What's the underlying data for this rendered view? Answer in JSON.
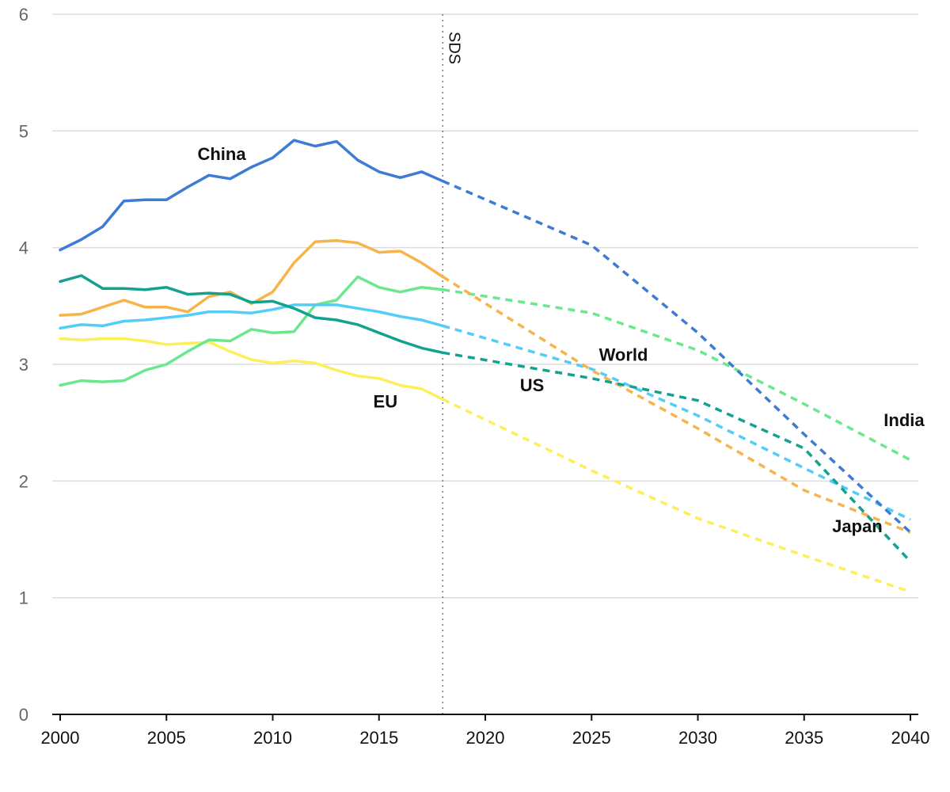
{
  "chart_data": {
    "type": "line",
    "title": "",
    "xlabel": "",
    "ylabel": "",
    "xlim": [
      2000,
      2040
    ],
    "ylim": [
      0,
      6
    ],
    "x_ticks": [
      "2000",
      "2005",
      "2010",
      "2015",
      "2020",
      "2025",
      "2030",
      "2035",
      "2040"
    ],
    "y_ticks": [
      "0",
      "1",
      "2",
      "3",
      "4",
      "5",
      "6"
    ],
    "grid": "horizontal",
    "marker": {
      "label": "SDS",
      "x": 2018
    },
    "legend": "none (direct labels)",
    "historical_style": "solid",
    "projection_style": "dashed",
    "series": [
      {
        "name": "China",
        "color": "#3d7bd4",
        "historical": {
          "x": [
            2000,
            2001,
            2002,
            2003,
            2004,
            2005,
            2006,
            2007,
            2008,
            2009,
            2010,
            2011,
            2012,
            2013,
            2014,
            2015,
            2016,
            2017,
            2018
          ],
          "y": [
            3.98,
            4.07,
            4.18,
            4.4,
            4.41,
            4.41,
            4.52,
            4.62,
            4.59,
            4.69,
            4.77,
            4.92,
            4.87,
            4.91,
            4.75,
            4.65,
            4.6,
            4.65,
            4.57
          ]
        },
        "projection": {
          "x": [
            2018,
            2025,
            2030,
            2035,
            2040
          ],
          "y": [
            4.57,
            4.02,
            3.27,
            2.4,
            1.56
          ]
        }
      },
      {
        "name": "Japan",
        "color": "#f7b44a",
        "historical": {
          "x": [
            2000,
            2001,
            2002,
            2003,
            2004,
            2005,
            2006,
            2007,
            2008,
            2009,
            2010,
            2011,
            2012,
            2013,
            2014,
            2015,
            2016,
            2017,
            2018
          ],
          "y": [
            3.42,
            3.43,
            3.49,
            3.55,
            3.49,
            3.49,
            3.45,
            3.58,
            3.62,
            3.52,
            3.62,
            3.87,
            4.05,
            4.06,
            4.04,
            3.96,
            3.97,
            3.87,
            3.75
          ]
        },
        "projection": {
          "x": [
            2018,
            2025,
            2030,
            2035,
            2040
          ],
          "y": [
            3.75,
            2.95,
            2.45,
            1.92,
            1.56
          ]
        }
      },
      {
        "name": "US",
        "color": "#13a28f",
        "historical": {
          "x": [
            2000,
            2001,
            2002,
            2003,
            2004,
            2005,
            2006,
            2007,
            2008,
            2009,
            2010,
            2011,
            2012,
            2013,
            2014,
            2015,
            2016,
            2017,
            2018
          ],
          "y": [
            3.71,
            3.76,
            3.65,
            3.65,
            3.64,
            3.66,
            3.6,
            3.61,
            3.6,
            3.53,
            3.54,
            3.48,
            3.4,
            3.38,
            3.34,
            3.27,
            3.2,
            3.14,
            3.1
          ]
        },
        "projection": {
          "x": [
            2018,
            2025,
            2030,
            2035,
            2040
          ],
          "y": [
            3.1,
            2.88,
            2.69,
            2.28,
            1.31
          ]
        }
      },
      {
        "name": "World",
        "color": "#52cdf7",
        "historical": {
          "x": [
            2000,
            2001,
            2002,
            2003,
            2004,
            2005,
            2006,
            2007,
            2008,
            2009,
            2010,
            2011,
            2012,
            2013,
            2014,
            2015,
            2016,
            2017,
            2018
          ],
          "y": [
            3.31,
            3.34,
            3.33,
            3.37,
            3.38,
            3.4,
            3.42,
            3.45,
            3.45,
            3.44,
            3.47,
            3.51,
            3.51,
            3.51,
            3.48,
            3.45,
            3.41,
            3.38,
            3.33
          ]
        },
        "projection": {
          "x": [
            2018,
            2025,
            2030,
            2035,
            2040
          ],
          "y": [
            3.33,
            2.96,
            2.56,
            2.11,
            1.67
          ]
        }
      },
      {
        "name": "India",
        "color": "#6be88d",
        "historical": {
          "x": [
            2000,
            2001,
            2002,
            2003,
            2004,
            2005,
            2006,
            2007,
            2008,
            2009,
            2010,
            2011,
            2012,
            2013,
            2014,
            2015,
            2016,
            2017,
            2018
          ],
          "y": [
            2.82,
            2.86,
            2.85,
            2.86,
            2.95,
            3.0,
            3.11,
            3.21,
            3.2,
            3.3,
            3.27,
            3.28,
            3.51,
            3.55,
            3.75,
            3.66,
            3.62,
            3.66,
            3.64
          ]
        },
        "projection": {
          "x": [
            2018,
            2025,
            2030,
            2035,
            2040
          ],
          "y": [
            3.64,
            3.44,
            3.12,
            2.66,
            2.18
          ]
        }
      },
      {
        "name": "EU",
        "color": "#fcef5a",
        "historical": {
          "x": [
            2000,
            2001,
            2002,
            2003,
            2004,
            2005,
            2006,
            2007,
            2008,
            2009,
            2010,
            2011,
            2012,
            2013,
            2014,
            2015,
            2016,
            2017,
            2018
          ],
          "y": [
            3.22,
            3.21,
            3.22,
            3.22,
            3.2,
            3.17,
            3.18,
            3.19,
            3.11,
            3.04,
            3.01,
            3.03,
            3.01,
            2.95,
            2.9,
            2.88,
            2.82,
            2.79,
            2.7
          ]
        },
        "projection": {
          "x": [
            2018,
            2025,
            2030,
            2035,
            2040
          ],
          "y": [
            2.7,
            2.09,
            1.68,
            1.36,
            1.05
          ]
        }
      }
    ],
    "annotations": [
      {
        "text": "China",
        "x": 2007.6,
        "y": 4.75
      },
      {
        "text": "World",
        "x": 2026.5,
        "y": 3.03
      },
      {
        "text": "US",
        "x": 2022.2,
        "y": 2.77
      },
      {
        "text": "EU",
        "x": 2015.3,
        "y": 2.63
      },
      {
        "text": "India",
        "x": 2039.7,
        "y": 2.47
      },
      {
        "text": "Japan",
        "x": 2037.5,
        "y": 1.56
      }
    ]
  }
}
